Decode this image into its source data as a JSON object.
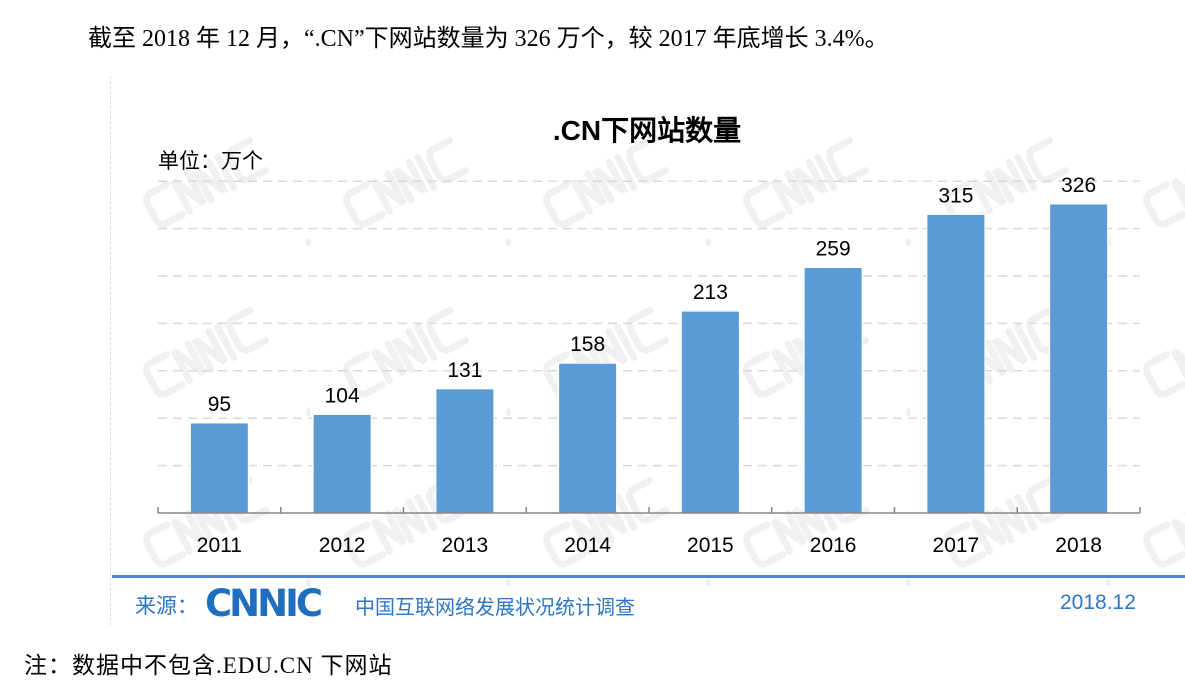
{
  "headline": "截至 2018 年 12 月，“.CN”下网站数量为 326 万个，较 2017 年底增长 3.4%。",
  "note": "注：数据中不包含.EDU.CN 下网站",
  "watermark": "CNNIC",
  "source": {
    "label": "来源：",
    "logo": "CNNIC",
    "description": "中国互联网络发展状况统计调查",
    "date": "2018.12"
  },
  "colors": {
    "bar": "#5B9BD5",
    "source": "#2E75C6",
    "grid": "#D9D9D9"
  },
  "chart_data": {
    "type": "bar",
    "title": ".CN下网站数量",
    "unit_label": "单位：万个",
    "xlabel": "",
    "ylabel": "",
    "categories": [
      "2011",
      "2012",
      "2013",
      "2014",
      "2015",
      "2016",
      "2017",
      "2018"
    ],
    "values": [
      95,
      104,
      131,
      158,
      213,
      259,
      315,
      326
    ],
    "ylim": [
      0,
      350
    ],
    "grid_step": 50,
    "grid": true
  }
}
